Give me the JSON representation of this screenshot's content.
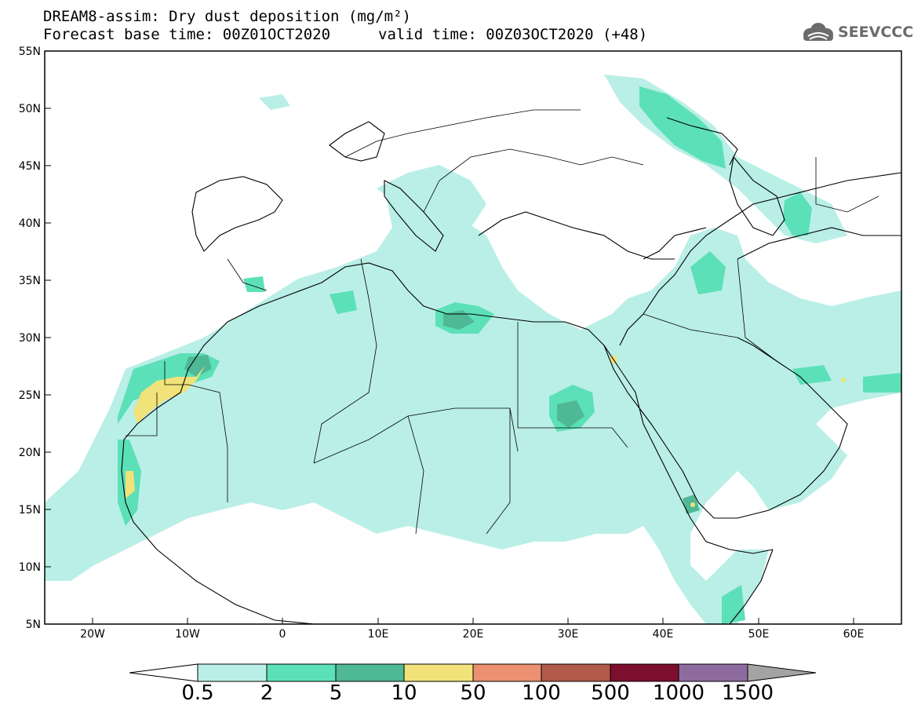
{
  "header": {
    "title_line1": "DREAM8-assim: Dry dust deposition (mg/m²)",
    "title_line2_left": "Forecast base time: 00Z01OCT2020",
    "title_line2_right": "valid time: 00Z03OCT2020 (+48)",
    "logo_text": "SEEVCCC",
    "logo_icon": "cloud-logo-icon"
  },
  "map": {
    "lon_range": [
      -25,
      65
    ],
    "lat_range": [
      5,
      55
    ],
    "lat_labels": [
      "55N",
      "50N",
      "45N",
      "40N",
      "35N",
      "30N",
      "25N",
      "20N",
      "15N",
      "10N",
      "5N"
    ],
    "lon_labels": [
      "20W",
      "10W",
      "0",
      "10E",
      "20E",
      "30E",
      "40E",
      "50E",
      "60E"
    ],
    "land_outline_color": "#000000",
    "background_color": "#ffffff"
  },
  "colorbar": {
    "labels": [
      "0.5",
      "2",
      "5",
      "10",
      "50",
      "100",
      "500",
      "1000",
      "1500"
    ],
    "colors": [
      "#b9efe6",
      "#5ce0b8",
      "#4fb894",
      "#f1e27a",
      "#eb9070",
      "#b25a4b",
      "#7d0e2d",
      "#8e6b9e"
    ],
    "under_color": "#ffffff",
    "over_color": "#a3a3a3"
  }
}
